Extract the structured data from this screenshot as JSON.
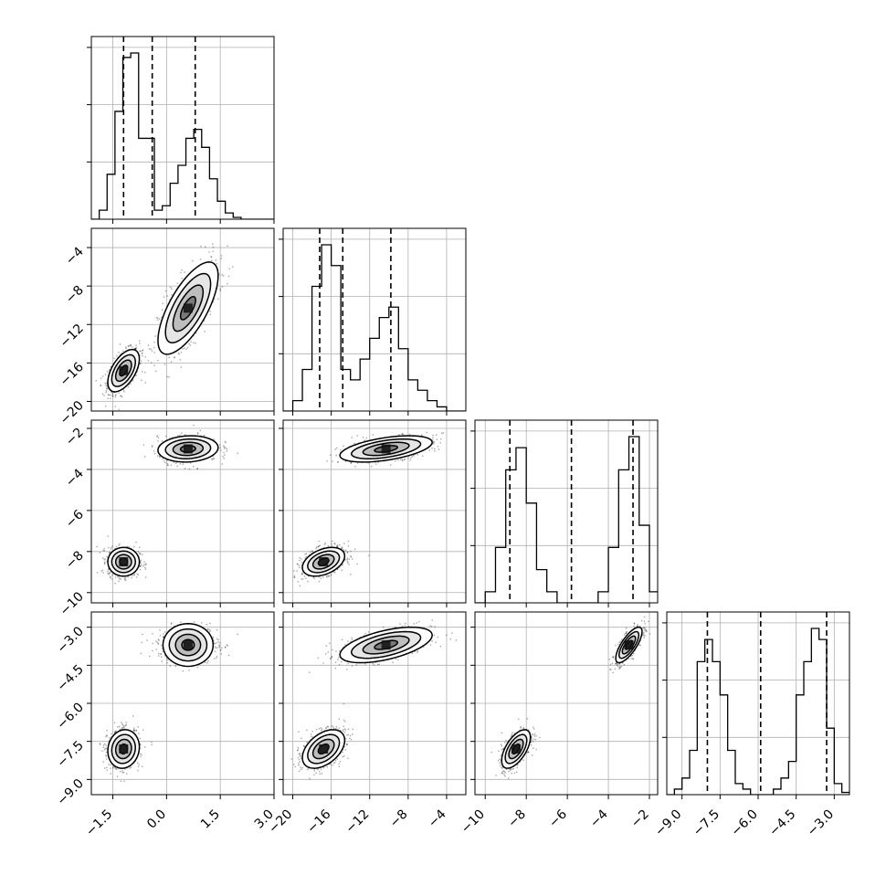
{
  "chart_data": {
    "type": "corner",
    "parameters": [
      {
        "range": [
          -2.1,
          3.0
        ],
        "ticks": [
          -1.5,
          0.0,
          1.5,
          3.0
        ],
        "tick_labels": [
          "−1.5",
          "0.0",
          "1.5",
          "3.0"
        ],
        "quantiles": [
          -1.2,
          -0.4,
          0.8
        ],
        "histogram": {
          "bin_edges": [
            -2.1,
            -1.88,
            -1.66,
            -1.44,
            -1.22,
            -1.0,
            -0.78,
            -0.56,
            -0.34,
            -0.12,
            0.1,
            0.32,
            0.54,
            0.76,
            0.98,
            1.2,
            1.42,
            1.64,
            1.86,
            2.08,
            2.3,
            2.52,
            2.74,
            3.0
          ],
          "counts": [
            0,
            1,
            5,
            12,
            18,
            18.5,
            9,
            9,
            1,
            1.5,
            4,
            6,
            9,
            10,
            8,
            4.5,
            2,
            0.7,
            0.2,
            0,
            0,
            0,
            0
          ]
        }
      },
      {
        "range": [
          -21,
          -2
        ],
        "ticks": [
          -20,
          -16,
          -12,
          -8,
          -4
        ],
        "tick_labels": [
          "−20",
          "−16",
          "−12",
          "−8",
          "−4"
        ],
        "quantiles": [
          -17.2,
          -14.8,
          -9.8
        ],
        "histogram": {
          "bin_edges": [
            -21,
            -20,
            -19,
            -18,
            -17,
            -16,
            -15,
            -14,
            -13,
            -12,
            -11,
            -10,
            -9,
            -8,
            -7,
            -6,
            -5,
            -4,
            -3,
            -2
          ],
          "counts": [
            0,
            1,
            4,
            12,
            16,
            14,
            4,
            3,
            5,
            7,
            9,
            10,
            6,
            3,
            2,
            1,
            0.4,
            0,
            0
          ]
        }
      },
      {
        "range": [
          -10.5,
          -1.6
        ],
        "ticks": [
          -10,
          -8,
          -6,
          -4,
          -2
        ],
        "tick_labels": [
          "−10",
          "−8",
          "−6",
          "−4",
          "−2"
        ],
        "quantiles": [
          -8.8,
          -5.8,
          -2.8
        ],
        "histogram": {
          "bin_edges": [
            -10.5,
            -10.0,
            -9.5,
            -9.0,
            -8.5,
            -8.0,
            -7.5,
            -7.0,
            -6.5,
            -6.0,
            -5.5,
            -5.0,
            -4.5,
            -4.0,
            -3.5,
            -3.0,
            -2.5,
            -2.0,
            -1.6
          ],
          "counts": [
            0,
            1,
            5,
            12,
            14,
            9,
            3,
            1,
            0,
            0,
            0,
            0,
            1,
            5,
            12,
            15,
            7,
            1
          ]
        }
      },
      {
        "range": [
          -9.6,
          -2.4
        ],
        "ticks": [
          -9.0,
          -7.5,
          -6.0,
          -4.5,
          -3.0
        ],
        "tick_labels": [
          "−9.0",
          "−7.5",
          "−6.0",
          "−4.5",
          "−3.0"
        ],
        "quantiles": [
          -8.0,
          -5.9,
          -3.3
        ],
        "histogram": {
          "bin_edges": [
            -9.6,
            -9.3,
            -9.0,
            -8.7,
            -8.4,
            -8.1,
            -7.8,
            -7.5,
            -7.2,
            -6.9,
            -6.6,
            -6.3,
            -6.0,
            -5.7,
            -5.4,
            -5.1,
            -4.8,
            -4.5,
            -4.2,
            -3.9,
            -3.6,
            -3.3,
            -3.0,
            -2.7,
            -2.4
          ],
          "counts": [
            0,
            0.5,
            1.5,
            4,
            12,
            14,
            12,
            9,
            4,
            1,
            0.5,
            0,
            0,
            0,
            0.5,
            1.5,
            3,
            9,
            12,
            15,
            14,
            6,
            1,
            0.2
          ]
        }
      }
    ],
    "modes": [
      {
        "center": [
          -1.2,
          -16.8,
          -8.5,
          -7.8
        ],
        "sigma": [
          0.22,
          1.1,
          0.35,
          0.38
        ],
        "correlation": {
          "0-1": 0.55,
          "0-2": 0.0,
          "0-3": 0.1,
          "1-2": 0.4,
          "1-3": 0.45,
          "2-3": 0.6
        },
        "weight": 0.55
      },
      {
        "center": [
          0.6,
          -10.3,
          -3.0,
          -3.7
        ],
        "sigma": [
          0.42,
          2.4,
          0.32,
          0.35
        ],
        "correlation": {
          "0-1": 0.7,
          "0-2": 0.1,
          "0-3": 0.0,
          "1-2": 0.5,
          "1-3": 0.55,
          "2-3": 0.75
        },
        "weight": 0.45
      }
    ],
    "contour_levels_sigma": [
      0.5,
      1.0,
      1.5,
      2.0
    ],
    "grid": true
  }
}
